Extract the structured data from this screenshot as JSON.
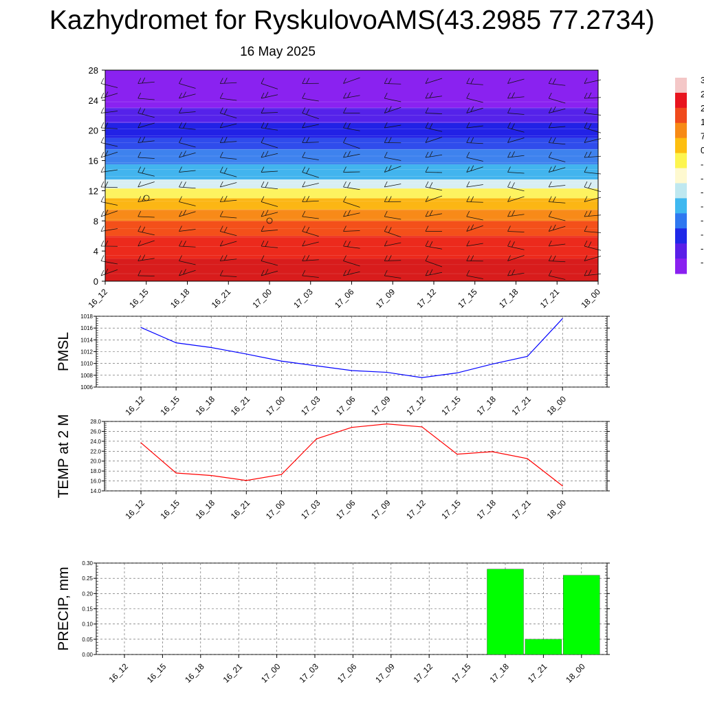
{
  "header": {
    "title": "Kazhydromet for RyskulovoAMS(43.2985 77.2734)",
    "date": "16 May 2025"
  },
  "time_labels": [
    "16_12",
    "16_15",
    "16_18",
    "16_21",
    "17_00",
    "17_03",
    "17_06",
    "17_09",
    "17_12",
    "17_15",
    "17_18",
    "17_21",
    "18_00"
  ],
  "colors": {
    "pmsl_line": "#0000ff",
    "temp_line": "#ff0000",
    "precip_bar": "#00ff00",
    "grid": "#000000"
  },
  "colorbar": {
    "labels": [
      "3",
      "2",
      "2",
      "1",
      "7",
      "0",
      "-",
      "-",
      "-",
      "-",
      "-",
      "-",
      "-",
      "-"
    ],
    "colors": [
      "#f4c7c7",
      "#e8141e",
      "#f04a1c",
      "#f78a16",
      "#fdbe10",
      "#fdf550",
      "#fef9d0",
      "#bfe8f0",
      "#3fb8f0",
      "#2f78f0",
      "#1f28e8",
      "#5a1fe8",
      "#8a20f0"
    ]
  },
  "chart_data": [
    {
      "type": "heatmap",
      "title": "Kazhydromet for RyskulovoAMS(43.2985 77.2734)",
      "subtitle": "16 May 2025",
      "x": [
        "16_12",
        "16_15",
        "16_18",
        "16_21",
        "17_00",
        "17_03",
        "17_06",
        "17_09",
        "17_12",
        "17_15",
        "17_18",
        "17_21",
        "18_00"
      ],
      "yticks": [
        0,
        4,
        8,
        12,
        16,
        20,
        24,
        28
      ],
      "ylim": [
        0,
        28
      ],
      "bands": [
        {
          "from": 0,
          "to": 3,
          "color": "#d81c1c"
        },
        {
          "from": 3,
          "to": 6,
          "color": "#ec2a1c"
        },
        {
          "from": 6,
          "to": 8,
          "color": "#f4501a"
        },
        {
          "from": 8,
          "to": 9.5,
          "color": "#f88a18"
        },
        {
          "from": 9.5,
          "to": 11,
          "color": "#fcb614"
        },
        {
          "from": 11,
          "to": 12.3,
          "color": "#fdf360"
        },
        {
          "from": 12.3,
          "to": 13.5,
          "color": "#d8eef4"
        },
        {
          "from": 13.5,
          "to": 15.5,
          "color": "#42b4ee"
        },
        {
          "from": 15.5,
          "to": 17.5,
          "color": "#3e82ee"
        },
        {
          "from": 17.5,
          "to": 19,
          "color": "#2f4cec"
        },
        {
          "from": 19,
          "to": 21,
          "color": "#2222e6"
        },
        {
          "from": 21,
          "to": 23,
          "color": "#5522ea"
        },
        {
          "from": 23,
          "to": 28,
          "color": "#8a22f0"
        }
      ]
    },
    {
      "type": "line",
      "ylabel": "PMSL",
      "x": [
        "16_12",
        "16_15",
        "16_18",
        "16_21",
        "17_00",
        "17_03",
        "17_06",
        "17_09",
        "17_12",
        "17_15",
        "17_18",
        "17_21",
        "18_00"
      ],
      "series": [
        {
          "values": [
            1016.1,
            1013.5,
            1012.7,
            1011.6,
            1010.4,
            1009.6,
            1008.8,
            1008.5,
            1007.6,
            1008.4,
            1009.9,
            1011.2,
            1017.6
          ]
        }
      ],
      "ylim": [
        1006,
        1018
      ],
      "yticks": [
        "1006",
        "1008",
        "1010",
        "1012",
        "1014",
        "1016",
        "1018"
      ],
      "grid": true
    },
    {
      "type": "line",
      "ylabel": "TEMP at 2 M",
      "x": [
        "16_12",
        "16_15",
        "16_18",
        "16_21",
        "17_00",
        "17_03",
        "17_06",
        "17_09",
        "17_12",
        "17_15",
        "17_18",
        "17_21",
        "18_00"
      ],
      "series": [
        {
          "values": [
            23.7,
            17.6,
            17.1,
            16.1,
            17.3,
            24.5,
            26.8,
            27.5,
            26.9,
            21.4,
            21.9,
            20.5,
            15.0
          ]
        }
      ],
      "ylim": [
        14,
        28
      ],
      "yticks": [
        "14.0",
        "16.0",
        "18.0",
        "20.0",
        "22.0",
        "24.0",
        "26.0",
        "28.0"
      ],
      "grid": true
    },
    {
      "type": "bar",
      "ylabel": "PRECIP, mm",
      "categories": [
        "16_12",
        "16_15",
        "16_18",
        "16_21",
        "17_00",
        "17_03",
        "17_06",
        "17_09",
        "17_12",
        "17_15",
        "17_18",
        "17_21",
        "18_00"
      ],
      "values": [
        0,
        0,
        0,
        0,
        0,
        0,
        0,
        0,
        0,
        0,
        0.28,
        0.05,
        0.26
      ],
      "ylim": [
        0,
        0.3
      ],
      "yticks": [
        "0.00",
        "0.05",
        "0.10",
        "0.15",
        "0.20",
        "0.25",
        "0.30"
      ],
      "grid": true
    }
  ]
}
